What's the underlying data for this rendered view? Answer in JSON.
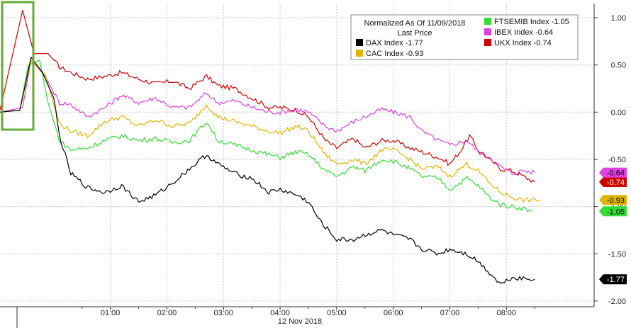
{
  "chart_data": {
    "type": "line",
    "legend": {
      "title_line1": "Normalized As Of 11/09/2018",
      "title_line2": "Last Price",
      "placement": "top-right",
      "entries": [
        {
          "text": "DAX Index  -1.77",
          "color": "#000000"
        },
        {
          "text": "CAC Index  -0.93",
          "color": "#e0b400"
        },
        {
          "text": "FTSEMIB Index  -1.05",
          "color": "#33dd33"
        },
        {
          "text": "IBEX Index  -0.64",
          "color": "#e040e0"
        },
        {
          "text": "UKX Index  -0.74",
          "color": "#cc0000"
        }
      ]
    },
    "x_tick_labels": [
      "01:00",
      "02:00",
      "03:00",
      "04:00",
      "05:00",
      "06:00",
      "07:00",
      "08:00"
    ],
    "x_date_label": "12 Nov 2018",
    "x_range_hours": [
      -0.95,
      9.55
    ],
    "y_tick_labels": [
      "1.00",
      "0.50",
      "0.00",
      "-0.50",
      "-1.00",
      "-1.50",
      "-2.00"
    ],
    "ylim": [
      -2.0,
      1.1
    ],
    "grid": true,
    "series": [
      {
        "name": "UKX Index",
        "color": "#cc0000",
        "last": "-0.74",
        "points": [
          [
            -0.95,
            0.02
          ],
          [
            -0.55,
            1.08
          ],
          [
            -0.35,
            0.62
          ],
          [
            -0.1,
            0.62
          ],
          [
            0.1,
            0.48
          ],
          [
            0.3,
            0.42
          ],
          [
            0.6,
            0.35
          ],
          [
            0.9,
            0.38
          ],
          [
            1.2,
            0.42
          ],
          [
            1.5,
            0.35
          ],
          [
            1.8,
            0.3
          ],
          [
            2.1,
            0.33
          ],
          [
            2.4,
            0.25
          ],
          [
            2.7,
            0.38
          ],
          [
            2.9,
            0.28
          ],
          [
            3.2,
            0.25
          ],
          [
            3.5,
            0.15
          ],
          [
            3.8,
            0.05
          ],
          [
            4.0,
            0.05
          ],
          [
            4.3,
            0.02
          ],
          [
            4.5,
            -0.05
          ],
          [
            4.8,
            -0.3
          ],
          [
            5.0,
            -0.38
          ],
          [
            5.3,
            -0.28
          ],
          [
            5.5,
            -0.38
          ],
          [
            5.8,
            -0.3
          ],
          [
            6.0,
            -0.3
          ],
          [
            6.3,
            -0.38
          ],
          [
            6.5,
            -0.42
          ],
          [
            6.8,
            -0.48
          ],
          [
            7.0,
            -0.55
          ],
          [
            7.2,
            -0.4
          ],
          [
            7.35,
            -0.25
          ],
          [
            7.5,
            -0.4
          ],
          [
            7.7,
            -0.5
          ],
          [
            7.9,
            -0.6
          ],
          [
            8.1,
            -0.62
          ],
          [
            8.3,
            -0.68
          ],
          [
            8.5,
            -0.74
          ]
        ]
      },
      {
        "name": "IBEX Index",
        "color": "#e040e0",
        "last": "-0.64",
        "points": [
          [
            -0.95,
            0.0
          ],
          [
            -0.55,
            0.05
          ],
          [
            -0.4,
            0.55
          ],
          [
            -0.15,
            0.38
          ],
          [
            0.1,
            0.1
          ],
          [
            0.3,
            0.08
          ],
          [
            0.6,
            -0.05
          ],
          [
            0.9,
            0.05
          ],
          [
            1.2,
            0.18
          ],
          [
            1.5,
            0.1
          ],
          [
            1.8,
            0.15
          ],
          [
            2.1,
            0.05
          ],
          [
            2.4,
            0.05
          ],
          [
            2.7,
            0.2
          ],
          [
            2.9,
            0.1
          ],
          [
            3.2,
            0.12
          ],
          [
            3.5,
            0.05
          ],
          [
            3.8,
            0.0
          ],
          [
            4.0,
            0.0
          ],
          [
            4.3,
            0.03
          ],
          [
            4.5,
            0.0
          ],
          [
            4.8,
            -0.15
          ],
          [
            5.0,
            -0.2
          ],
          [
            5.3,
            -0.1
          ],
          [
            5.5,
            -0.05
          ],
          [
            5.8,
            0.03
          ],
          [
            6.0,
            0.0
          ],
          [
            6.3,
            -0.05
          ],
          [
            6.5,
            -0.2
          ],
          [
            6.8,
            -0.3
          ],
          [
            7.0,
            -0.35
          ],
          [
            7.3,
            -0.3
          ],
          [
            7.5,
            -0.42
          ],
          [
            7.7,
            -0.48
          ],
          [
            7.9,
            -0.58
          ],
          [
            8.1,
            -0.65
          ],
          [
            8.3,
            -0.62
          ],
          [
            8.5,
            -0.64
          ]
        ]
      },
      {
        "name": "CAC Index",
        "color": "#e0b400",
        "last": "-0.93",
        "points": [
          [
            -0.95,
            0.0
          ],
          [
            -0.6,
            0.02
          ],
          [
            -0.4,
            0.55
          ],
          [
            -0.15,
            0.4
          ],
          [
            0.1,
            -0.12
          ],
          [
            0.3,
            -0.2
          ],
          [
            0.6,
            -0.25
          ],
          [
            0.9,
            -0.1
          ],
          [
            1.2,
            -0.05
          ],
          [
            1.5,
            -0.15
          ],
          [
            1.8,
            -0.08
          ],
          [
            2.1,
            -0.15
          ],
          [
            2.4,
            -0.12
          ],
          [
            2.7,
            0.08
          ],
          [
            2.9,
            -0.05
          ],
          [
            3.2,
            -0.1
          ],
          [
            3.5,
            -0.15
          ],
          [
            3.8,
            -0.2
          ],
          [
            4.0,
            -0.22
          ],
          [
            4.3,
            -0.15
          ],
          [
            4.5,
            -0.2
          ],
          [
            4.8,
            -0.45
          ],
          [
            5.0,
            -0.55
          ],
          [
            5.3,
            -0.5
          ],
          [
            5.5,
            -0.55
          ],
          [
            5.8,
            -0.4
          ],
          [
            6.0,
            -0.4
          ],
          [
            6.3,
            -0.5
          ],
          [
            6.5,
            -0.6
          ],
          [
            6.8,
            -0.58
          ],
          [
            7.0,
            -0.68
          ],
          [
            7.3,
            -0.55
          ],
          [
            7.5,
            -0.62
          ],
          [
            7.7,
            -0.75
          ],
          [
            7.9,
            -0.85
          ],
          [
            8.1,
            -0.9
          ],
          [
            8.3,
            -0.93
          ],
          [
            8.6,
            -0.93
          ]
        ]
      },
      {
        "name": "FTSEMIB Index",
        "color": "#33dd33",
        "last": "-1.05",
        "points": [
          [
            -0.95,
            0.0
          ],
          [
            -0.6,
            0.02
          ],
          [
            -0.45,
            0.5
          ],
          [
            -0.25,
            0.55
          ],
          [
            -0.1,
            0.1
          ],
          [
            0.1,
            -0.3
          ],
          [
            0.3,
            -0.4
          ],
          [
            0.6,
            -0.38
          ],
          [
            0.9,
            -0.3
          ],
          [
            1.2,
            -0.25
          ],
          [
            1.5,
            -0.3
          ],
          [
            1.8,
            -0.28
          ],
          [
            2.1,
            -0.32
          ],
          [
            2.4,
            -0.3
          ],
          [
            2.7,
            -0.1
          ],
          [
            2.9,
            -0.3
          ],
          [
            3.2,
            -0.35
          ],
          [
            3.5,
            -0.4
          ],
          [
            3.8,
            -0.45
          ],
          [
            4.0,
            -0.48
          ],
          [
            4.3,
            -0.42
          ],
          [
            4.5,
            -0.45
          ],
          [
            4.8,
            -0.62
          ],
          [
            5.0,
            -0.68
          ],
          [
            5.3,
            -0.58
          ],
          [
            5.5,
            -0.62
          ],
          [
            5.8,
            -0.5
          ],
          [
            6.0,
            -0.52
          ],
          [
            6.3,
            -0.6
          ],
          [
            6.5,
            -0.68
          ],
          [
            6.8,
            -0.7
          ],
          [
            7.0,
            -0.82
          ],
          [
            7.3,
            -0.7
          ],
          [
            7.5,
            -0.78
          ],
          [
            7.7,
            -0.9
          ],
          [
            7.9,
            -0.98
          ],
          [
            8.1,
            -1.0
          ],
          [
            8.3,
            -1.02
          ],
          [
            8.45,
            -1.05
          ]
        ]
      },
      {
        "name": "DAX Index",
        "color": "#000000",
        "last": "-1.77",
        "points": [
          [
            -0.95,
            0.0
          ],
          [
            -0.6,
            0.02
          ],
          [
            -0.4,
            0.58
          ],
          [
            -0.2,
            0.42
          ],
          [
            0.0,
            0.15
          ],
          [
            0.1,
            -0.25
          ],
          [
            0.3,
            -0.65
          ],
          [
            0.6,
            -0.8
          ],
          [
            0.9,
            -0.85
          ],
          [
            1.2,
            -0.78
          ],
          [
            1.5,
            -0.95
          ],
          [
            1.8,
            -0.88
          ],
          [
            2.1,
            -0.75
          ],
          [
            2.4,
            -0.6
          ],
          [
            2.7,
            -0.45
          ],
          [
            2.9,
            -0.55
          ],
          [
            3.2,
            -0.65
          ],
          [
            3.5,
            -0.7
          ],
          [
            3.8,
            -0.85
          ],
          [
            4.0,
            -0.82
          ],
          [
            4.3,
            -0.88
          ],
          [
            4.5,
            -0.95
          ],
          [
            4.7,
            -1.15
          ],
          [
            5.0,
            -1.35
          ],
          [
            5.3,
            -1.35
          ],
          [
            5.5,
            -1.3
          ],
          [
            5.8,
            -1.25
          ],
          [
            6.0,
            -1.3
          ],
          [
            6.3,
            -1.35
          ],
          [
            6.5,
            -1.45
          ],
          [
            6.8,
            -1.5
          ],
          [
            7.0,
            -1.45
          ],
          [
            7.3,
            -1.5
          ],
          [
            7.5,
            -1.58
          ],
          [
            7.7,
            -1.7
          ],
          [
            7.9,
            -1.82
          ],
          [
            8.1,
            -1.75
          ],
          [
            8.3,
            -1.76
          ],
          [
            8.5,
            -1.77
          ]
        ]
      }
    ]
  }
}
